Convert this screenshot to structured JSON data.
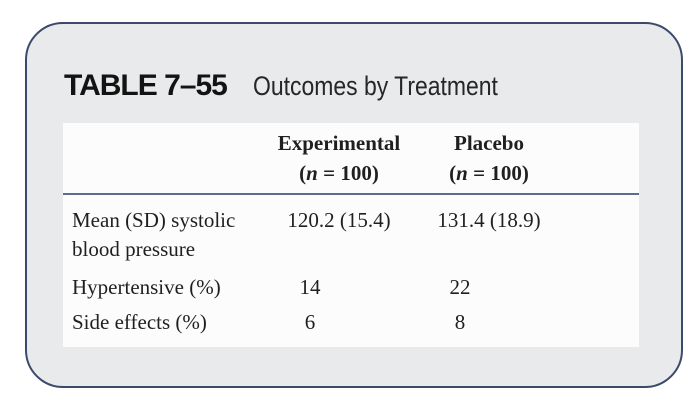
{
  "card": {
    "label": "TABLE 7–55",
    "title": "Outcomes by Treatment"
  },
  "table": {
    "columns": [
      {
        "name": "Experimental",
        "n_open": "(",
        "n_var": "n",
        "n_rest": " = 100)"
      },
      {
        "name": "Placebo",
        "n_open": "(",
        "n_var": "n",
        "n_rest": " = 100)"
      }
    ],
    "rows": [
      {
        "label": "Mean (SD) systolic",
        "label2": "blood pressure",
        "experimental": "120.2 (15.4)",
        "placebo": "131.4 (18.9)"
      },
      {
        "label": "Hypertensive (%)",
        "experimental": "14",
        "placebo": "22"
      },
      {
        "label": "Side effects (%)",
        "experimental": "6",
        "placebo": "8"
      }
    ]
  },
  "colors": {
    "card_border": "#3b4a6b",
    "card_background": "#e9eaeb",
    "panel_background": "#fcfcfd",
    "header_rule": "#5e6c8a",
    "text": "#1f1f1f"
  }
}
